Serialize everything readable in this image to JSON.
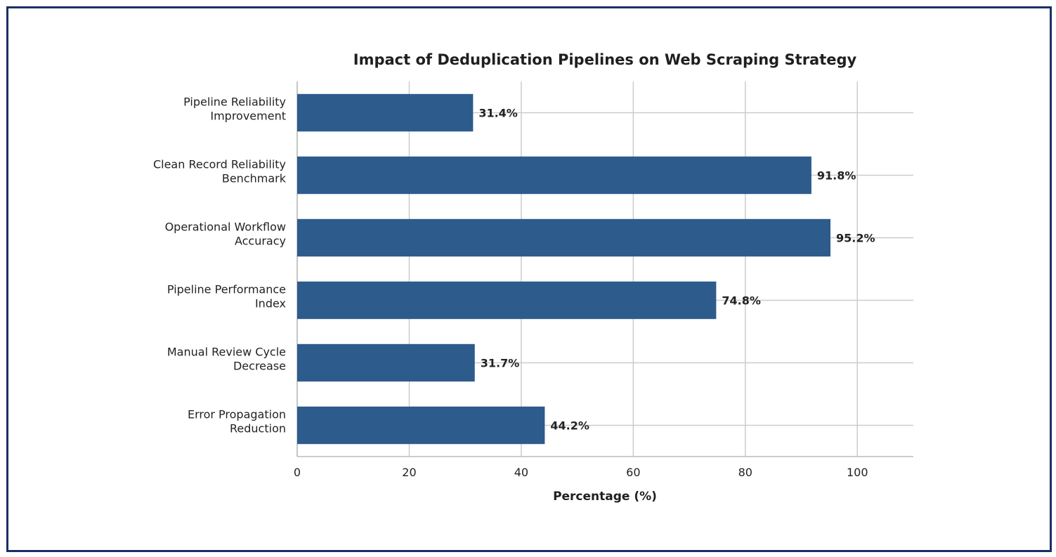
{
  "chart_data": {
    "type": "bar",
    "orientation": "horizontal",
    "title": "Impact of Deduplication Pipelines on Web Scraping Strategy",
    "xlabel": "Percentage (%)",
    "ylabel": "",
    "categories": [
      [
        "Pipeline Reliability",
        "Improvement"
      ],
      [
        "Clean Record Reliability",
        "Benchmark"
      ],
      [
        "Operational Workflow",
        "Accuracy"
      ],
      [
        "Pipeline Performance",
        "Index"
      ],
      [
        "Manual Review Cycle",
        "Decrease"
      ],
      [
        "Error Propagation",
        "Reduction"
      ]
    ],
    "values": [
      31.4,
      91.8,
      95.2,
      74.8,
      31.7,
      44.2
    ],
    "value_labels": [
      "31.4%",
      "91.8%",
      "95.2%",
      "74.8%",
      "31.7%",
      "44.2%"
    ],
    "xlim": [
      0,
      110
    ],
    "xticks": [
      0,
      20,
      40,
      60,
      80,
      100
    ],
    "grid": true,
    "bar_color": "#2d5b8c",
    "frame_color": "#1a2f66"
  }
}
